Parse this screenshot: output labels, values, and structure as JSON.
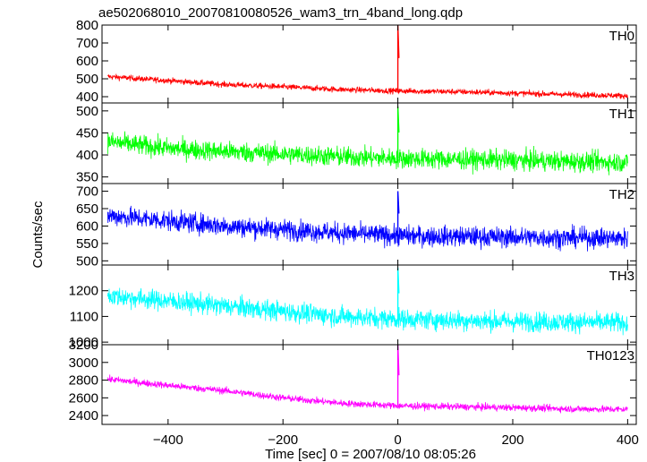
{
  "chart_data": {
    "type": "line",
    "title": "ae502068010_20070810080526_wam3_trn_4band_long.qdp",
    "xlabel": "Time [sec] 0 = 2007/08/10 08:05:26",
    "ylabel": "Counts/sec",
    "xlim": [
      -515,
      415
    ],
    "xticks": [
      -400,
      -200,
      0,
      200,
      400
    ],
    "xtick_labels": [
      "−400",
      "−200",
      "0",
      "200",
      "400"
    ],
    "grid": false,
    "x_start": -505,
    "x_end": 400,
    "n_samples": 1800,
    "panels": [
      {
        "name": "TH0",
        "color": "#ff0000",
        "ylim": [
          365,
          800
        ],
        "yticks": [
          400,
          500,
          600,
          700,
          800
        ],
        "trend": [
          [
            -505,
            512
          ],
          [
            -400,
            490
          ],
          [
            -300,
            468
          ],
          [
            -200,
            455
          ],
          [
            -100,
            440
          ],
          [
            0,
            432
          ],
          [
            100,
            428
          ],
          [
            200,
            420
          ],
          [
            300,
            412
          ],
          [
            400,
            405
          ]
        ],
        "noise_amp": 50,
        "peak": {
          "x": 0,
          "y": 800
        }
      },
      {
        "name": "TH1",
        "color": "#00ff00",
        "ylim": [
          335,
          518
        ],
        "yticks": [
          350,
          400,
          450,
          500
        ],
        "trend": [
          [
            -505,
            430
          ],
          [
            -400,
            415
          ],
          [
            -300,
            408
          ],
          [
            -200,
            402
          ],
          [
            -100,
            396
          ],
          [
            0,
            392
          ],
          [
            100,
            390
          ],
          [
            200,
            388
          ],
          [
            300,
            385
          ],
          [
            400,
            383
          ]
        ],
        "noise_amp": 70,
        "peak": {
          "x": 0,
          "y": 510
        }
      },
      {
        "name": "TH2",
        "color": "#0000ff",
        "ylim": [
          488,
          722
        ],
        "yticks": [
          500,
          550,
          600,
          650,
          700
        ],
        "trend": [
          [
            -505,
            630
          ],
          [
            -400,
            615
          ],
          [
            -300,
            600
          ],
          [
            -200,
            590
          ],
          [
            -100,
            580
          ],
          [
            0,
            572
          ],
          [
            100,
            570
          ],
          [
            200,
            568
          ],
          [
            300,
            566
          ],
          [
            400,
            565
          ]
        ],
        "noise_amp": 90,
        "peak": {
          "x": 0,
          "y": 700
        }
      },
      {
        "name": "TH3",
        "color": "#00ffff",
        "ylim": [
          990,
          1300
        ],
        "yticks": [
          1000,
          1100,
          1200
        ],
        "trend": [
          [
            -505,
            1180
          ],
          [
            -400,
            1160
          ],
          [
            -300,
            1140
          ],
          [
            -200,
            1120
          ],
          [
            -100,
            1100
          ],
          [
            0,
            1090
          ],
          [
            100,
            1085
          ],
          [
            200,
            1080
          ],
          [
            300,
            1078
          ],
          [
            400,
            1075
          ]
        ],
        "noise_amp": 120,
        "peak": {
          "x": 0,
          "y": 1290
        }
      },
      {
        "name": "TH0123",
        "color": "#ff00ff",
        "ylim": [
          2300,
          3200
        ],
        "yticks": [
          2400,
          2600,
          2800,
          3000,
          3200
        ],
        "trend": [
          [
            -505,
            2810
          ],
          [
            -400,
            2740
          ],
          [
            -300,
            2680
          ],
          [
            -200,
            2600
          ],
          [
            -100,
            2540
          ],
          [
            0,
            2510
          ],
          [
            100,
            2500
          ],
          [
            200,
            2490
          ],
          [
            300,
            2475
          ],
          [
            400,
            2470
          ]
        ],
        "noise_amp": 120,
        "peak": {
          "x": 0,
          "y": 3200
        }
      }
    ]
  }
}
